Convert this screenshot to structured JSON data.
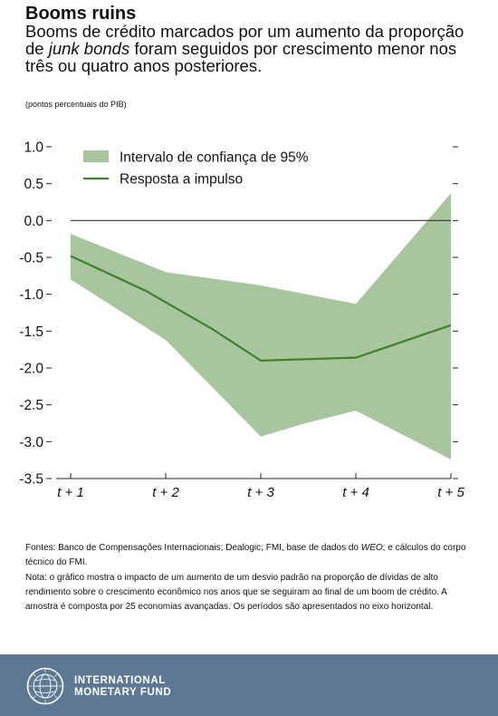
{
  "header": {
    "title": "Booms ruins",
    "subtitle_part1": "Booms de crédito marcados por um aumento da proporção de ",
    "subtitle_emphasis": "junk bonds",
    "subtitle_part2": " foram seguidos por crescimento menor nos três ou quatro anos posteriores.",
    "units": "(pontos percentuais do PIB)"
  },
  "chart_data": {
    "type": "line",
    "categories": [
      "t + 1",
      "t + 2",
      "t + 3",
      "t + 4",
      "t + 5"
    ],
    "x_tick_labels": [
      "t + 1",
      "t + 2",
      "t + 3",
      "t + 4",
      "t + 5"
    ],
    "y_ticks": [
      1.0,
      0.5,
      0.0,
      -0.5,
      -1.0,
      -1.5,
      -2.0,
      -2.5,
      -3.0,
      -3.5
    ],
    "y_tick_labels": [
      "1.0",
      "0.5",
      "0.0",
      "-0.5",
      "-1.0",
      "-1.5",
      "-2.0",
      "-2.5",
      "-3.0",
      "-3.5"
    ],
    "ylim": [
      -3.5,
      1.0
    ],
    "series": [
      {
        "name": "Resposta a impulso",
        "kind": "line",
        "color": "#3f7f2f",
        "x": [
          1,
          1.8,
          2.5,
          3,
          4,
          5
        ],
        "values": [
          -0.48,
          -0.96,
          -1.48,
          -1.9,
          -1.86,
          -1.42
        ]
      },
      {
        "name": "Intervalo de confiança de 95%",
        "kind": "band",
        "color": "#a8c69d",
        "x_upper": [
          1,
          2,
          3,
          4,
          5
        ],
        "upper": [
          -0.18,
          -0.7,
          -0.88,
          -1.13,
          0.37
        ],
        "x_lower": [
          1,
          2,
          3,
          3.5,
          4,
          5
        ],
        "lower": [
          -0.8,
          -1.62,
          -2.93,
          -2.74,
          -2.58,
          -3.24
        ]
      }
    ],
    "zero_line": true,
    "legend_position": "top-left",
    "legend": [
      {
        "label": "Intervalo de confiança de 95%",
        "kind": "band",
        "color": "#a8c69d"
      },
      {
        "label": "Resposta a impulso",
        "kind": "line",
        "color": "#3f7f2f"
      }
    ]
  },
  "notes": {
    "sources_part1": "Fontes: Banco de Compensações Internacionais; Dealogic; FMI, base de dados do ",
    "sources_emphasis": "WEO",
    "sources_part2": "; e cálculos do corpo técnico do FMI.",
    "note": "Nota: o gráfico mostra o impacto de um aumento de um desvio padrão na proporção de dívidas de alto rendimento sobre o crescimento econômico nos anos que se seguiram ao final de um boom de crédito. A amostra é composta por 25 economias avançadas. Os períodos são apresentados no eixo horizontal."
  },
  "footer": {
    "line1": "INTERNATIONAL",
    "line2": "MONETARY FUND",
    "background": "#5d7892",
    "logo_icon": "imf-seal-icon"
  }
}
